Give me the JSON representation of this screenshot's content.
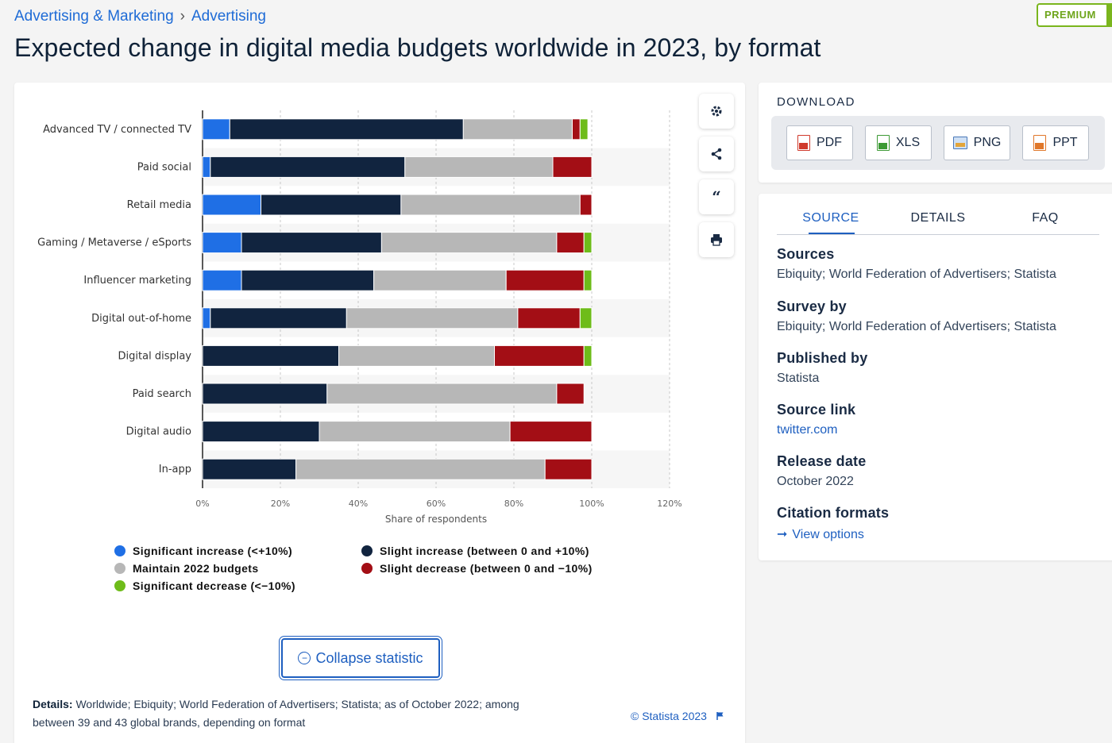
{
  "breadcrumb": {
    "items": [
      "Advertising & Marketing",
      "Advertising"
    ],
    "separator": "›"
  },
  "premium_badge": "PREMIUM",
  "page_title": "Expected change in digital media budgets worldwide in 2023, by format",
  "chart_data": {
    "type": "bar",
    "orientation": "horizontal",
    "stacked": true,
    "categories": [
      "Advanced TV / connected TV",
      "Paid social",
      "Retail media",
      "Gaming / Metaverse / eSports",
      "Influencer marketing",
      "Digital out-of-home",
      "Digital display",
      "Paid search",
      "Digital audio",
      "In-app"
    ],
    "series": [
      {
        "name": "Significant increase (<+10%)",
        "color": "#1f6fe5",
        "values": [
          7,
          2,
          15,
          10,
          10,
          2,
          0,
          0,
          0,
          0
        ]
      },
      {
        "name": "Slight increase (between 0 and +10%)",
        "color": "#11243f",
        "values": [
          60,
          50,
          36,
          36,
          34,
          35,
          35,
          32,
          30,
          24
        ]
      },
      {
        "name": "Maintain 2022 budgets",
        "color": "#b7b7b7",
        "values": [
          28,
          38,
          46,
          45,
          34,
          44,
          40,
          59,
          49,
          64
        ]
      },
      {
        "name": "Slight decrease (between 0 and −10%)",
        "color": "#a30e15",
        "values": [
          2,
          10,
          3,
          7,
          20,
          16,
          23,
          7,
          21,
          12
        ]
      },
      {
        "name": "Significant decrease (<−10%)",
        "color": "#6ebc1a",
        "values": [
          2,
          0,
          0,
          2,
          2,
          3,
          2,
          0,
          0,
          0
        ]
      }
    ],
    "xlabel": "Share of respondents",
    "ylabel": "",
    "x_ticks": [
      "0%",
      "20%",
      "40%",
      "60%",
      "80%",
      "100%",
      "120%"
    ],
    "xlim": [
      0,
      120
    ],
    "grid": true,
    "legend_position": "bottom"
  },
  "tools": [
    "gear-icon",
    "share-icon",
    "quote-icon",
    "print-icon"
  ],
  "collapse_label": "Collapse statistic",
  "details": {
    "label": "Details:",
    "text": "Worldwide; Ebiquity; World Federation of Advertisers; Statista; as of October 2022; among between 39 and 43 global brands, depending on format"
  },
  "copyright": "© Statista 2023",
  "download": {
    "title": "DOWNLOAD",
    "buttons": [
      {
        "label": "PDF",
        "color": "#d03a2c"
      },
      {
        "label": "XLS",
        "color": "#3d9a35"
      },
      {
        "label": "PNG",
        "color": "#4a78b8"
      },
      {
        "label": "PPT",
        "color": "#e0772a"
      }
    ]
  },
  "source_tabs": [
    "SOURCE",
    "DETAILS",
    "FAQ"
  ],
  "source": {
    "sources_label": "Sources",
    "sources_value": "Ebiquity; World Federation of Advertisers; Statista",
    "survey_label": "Survey by",
    "survey_value": "Ebiquity; World Federation of Advertisers; Statista",
    "published_label": "Published by",
    "published_value": "Statista",
    "link_label": "Source link",
    "link_value": "twitter.com",
    "release_label": "Release date",
    "release_value": "October 2022",
    "citation_label": "Citation formats",
    "citation_value": "View options"
  }
}
